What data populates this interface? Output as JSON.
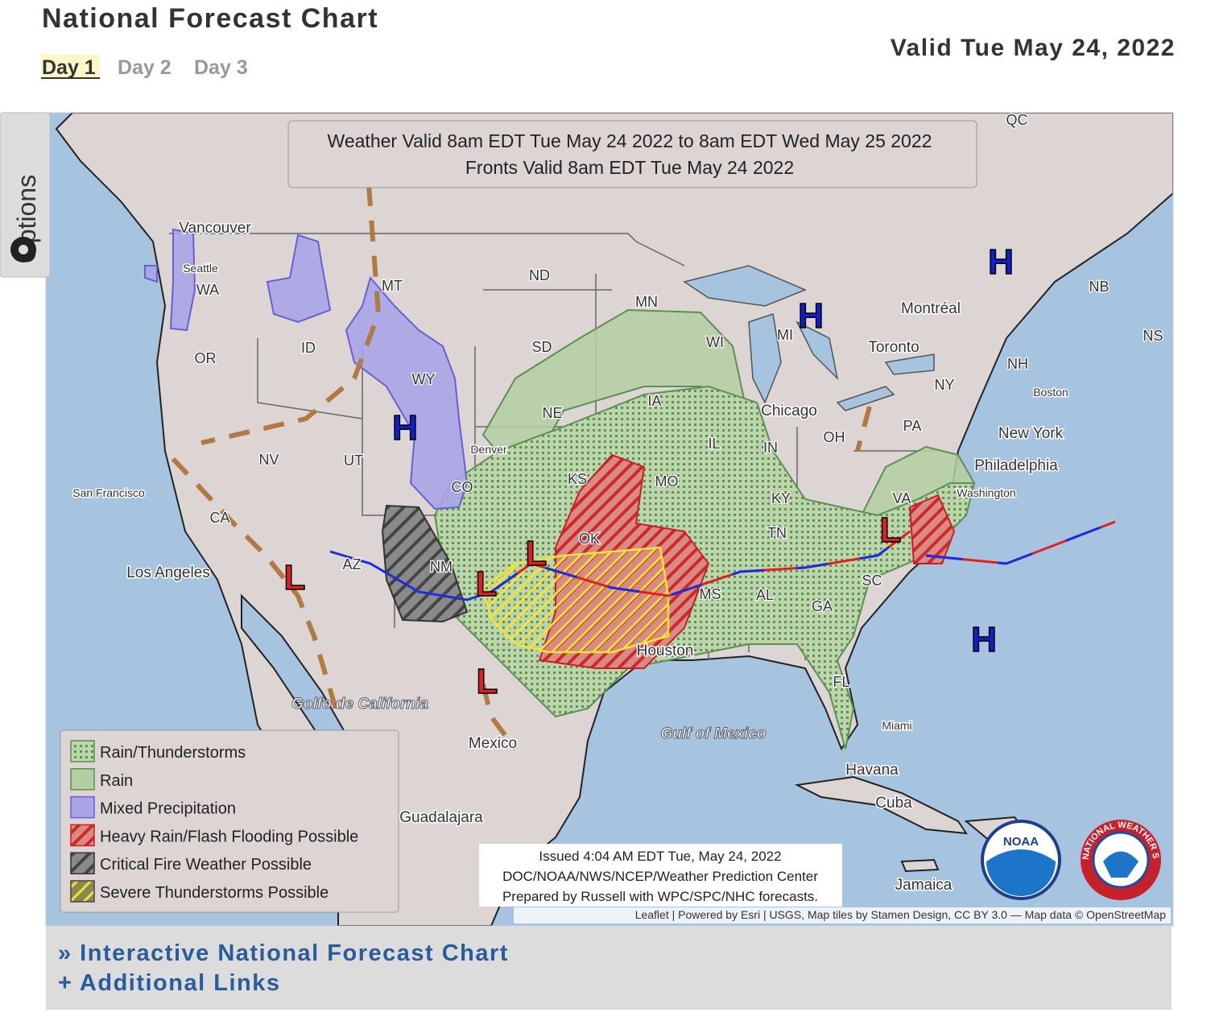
{
  "header": {
    "title": "National Forecast Chart",
    "tabs": [
      "Day 1",
      "Day 2",
      "Day 3"
    ],
    "valid": "Valid Tue May 24, 2022"
  },
  "options_tab": "Options",
  "map": {
    "banner": [
      "Weather Valid 8am EDT Tue May 24 2022 to 8am EDT Wed May 25 2022",
      "Fronts Valid 8am EDT Tue May 24 2022"
    ],
    "states": [
      "QC",
      "ND",
      "MN",
      "SD",
      "WI",
      "MI",
      "NE",
      "IA",
      "IL",
      "IN",
      "OH",
      "PA",
      "NY",
      "NH",
      "NS",
      "NB",
      "KS",
      "MO",
      "KY",
      "TN",
      "VA",
      "SC",
      "MS",
      "AL",
      "GA",
      "FL",
      "OK",
      "AZ",
      "NM",
      "CO",
      "UT",
      "NV",
      "CA",
      "OR",
      "ID",
      "WA",
      "MT",
      "WY"
    ],
    "cities": [
      "Vancouver",
      "Seattle",
      "Denver",
      "San Francisco",
      "Los Angeles",
      "Chicago",
      "Toronto",
      "Montréal",
      "Boston",
      "New York",
      "Philadelphia",
      "Washington",
      "Houston",
      "Miami",
      "Havana",
      "Cuba",
      "Jamaica",
      "Mexico",
      "Guadalajara"
    ],
    "water": [
      "Golfo de California",
      "Gulf of Mexico"
    ],
    "pressure_centers": [
      "H",
      "H",
      "H",
      "H",
      "L",
      "L",
      "L",
      "L",
      "L"
    ],
    "legend": [
      "Rain/Thunderstorms",
      "Rain",
      "Mixed Precipitation",
      "Heavy Rain/Flash Flooding Possible",
      "Critical Fire Weather Possible",
      "Severe Thunderstorms Possible"
    ],
    "issued": [
      "Issued 4:04 AM EDT Tue, May 24, 2022",
      "DOC/NOAA/NWS/NCEP/Weather Prediction Center",
      "Prepared by Russell with WPC/SPC/NHC forecasts."
    ],
    "attribution": "Leaflet | Powered by Esri | USGS, Map tiles by Stamen Design, CC BY 3.0 — Map data © OpenStreetMap",
    "logos": {
      "noaa": "NOAA",
      "nws": "NATIONAL WEATHER SERVICE"
    }
  },
  "footer": {
    "links": [
      "» Interactive National Forecast Chart",
      "+ Additional Links"
    ]
  }
}
